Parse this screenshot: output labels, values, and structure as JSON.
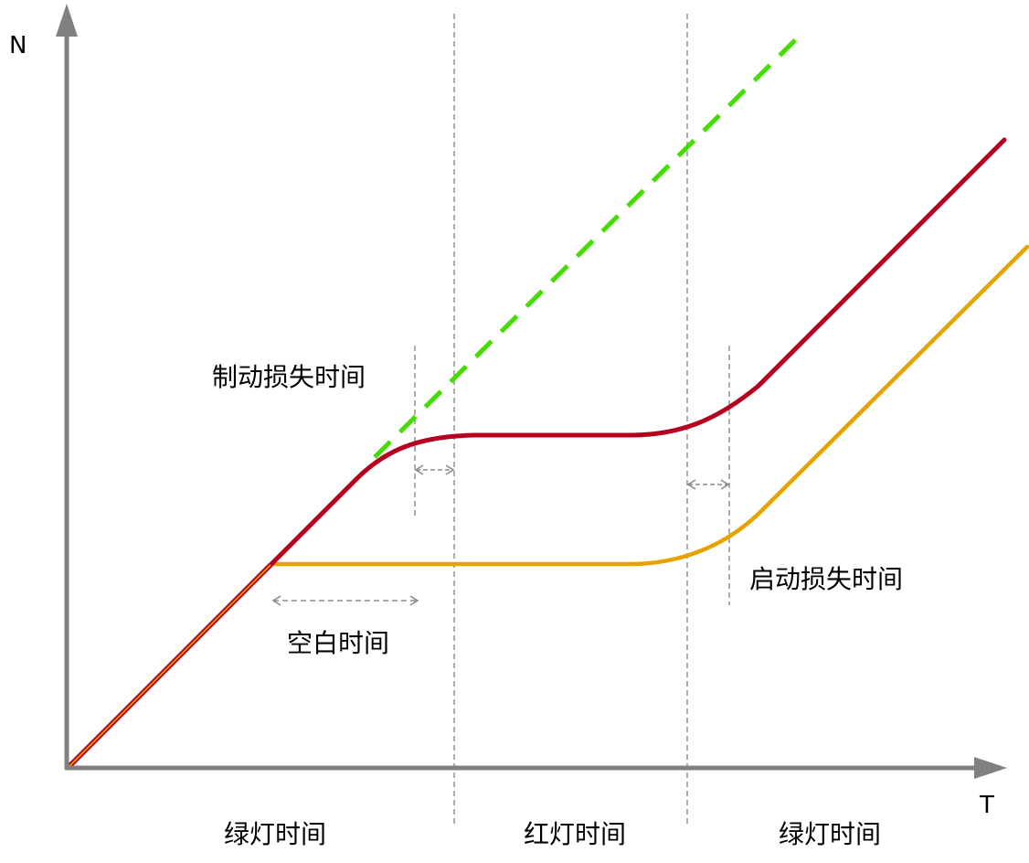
{
  "axes": {
    "y_label": "N",
    "x_label": "T"
  },
  "annotations": {
    "brake_loss": "制动损失时间",
    "start_loss": "启动损失时间",
    "blank_time": "空白时间"
  },
  "phases": {
    "green_1": "绿灯时间",
    "red": "红灯时间",
    "green_2": "绿灯时间"
  },
  "colors": {
    "axis": "#808080",
    "departure_curve": "#B5001F",
    "arrival_curve": "#E6A300",
    "ideal_curve": "#44DD00",
    "guide": "#8a8a8a",
    "start_segment": "#C83200"
  }
}
